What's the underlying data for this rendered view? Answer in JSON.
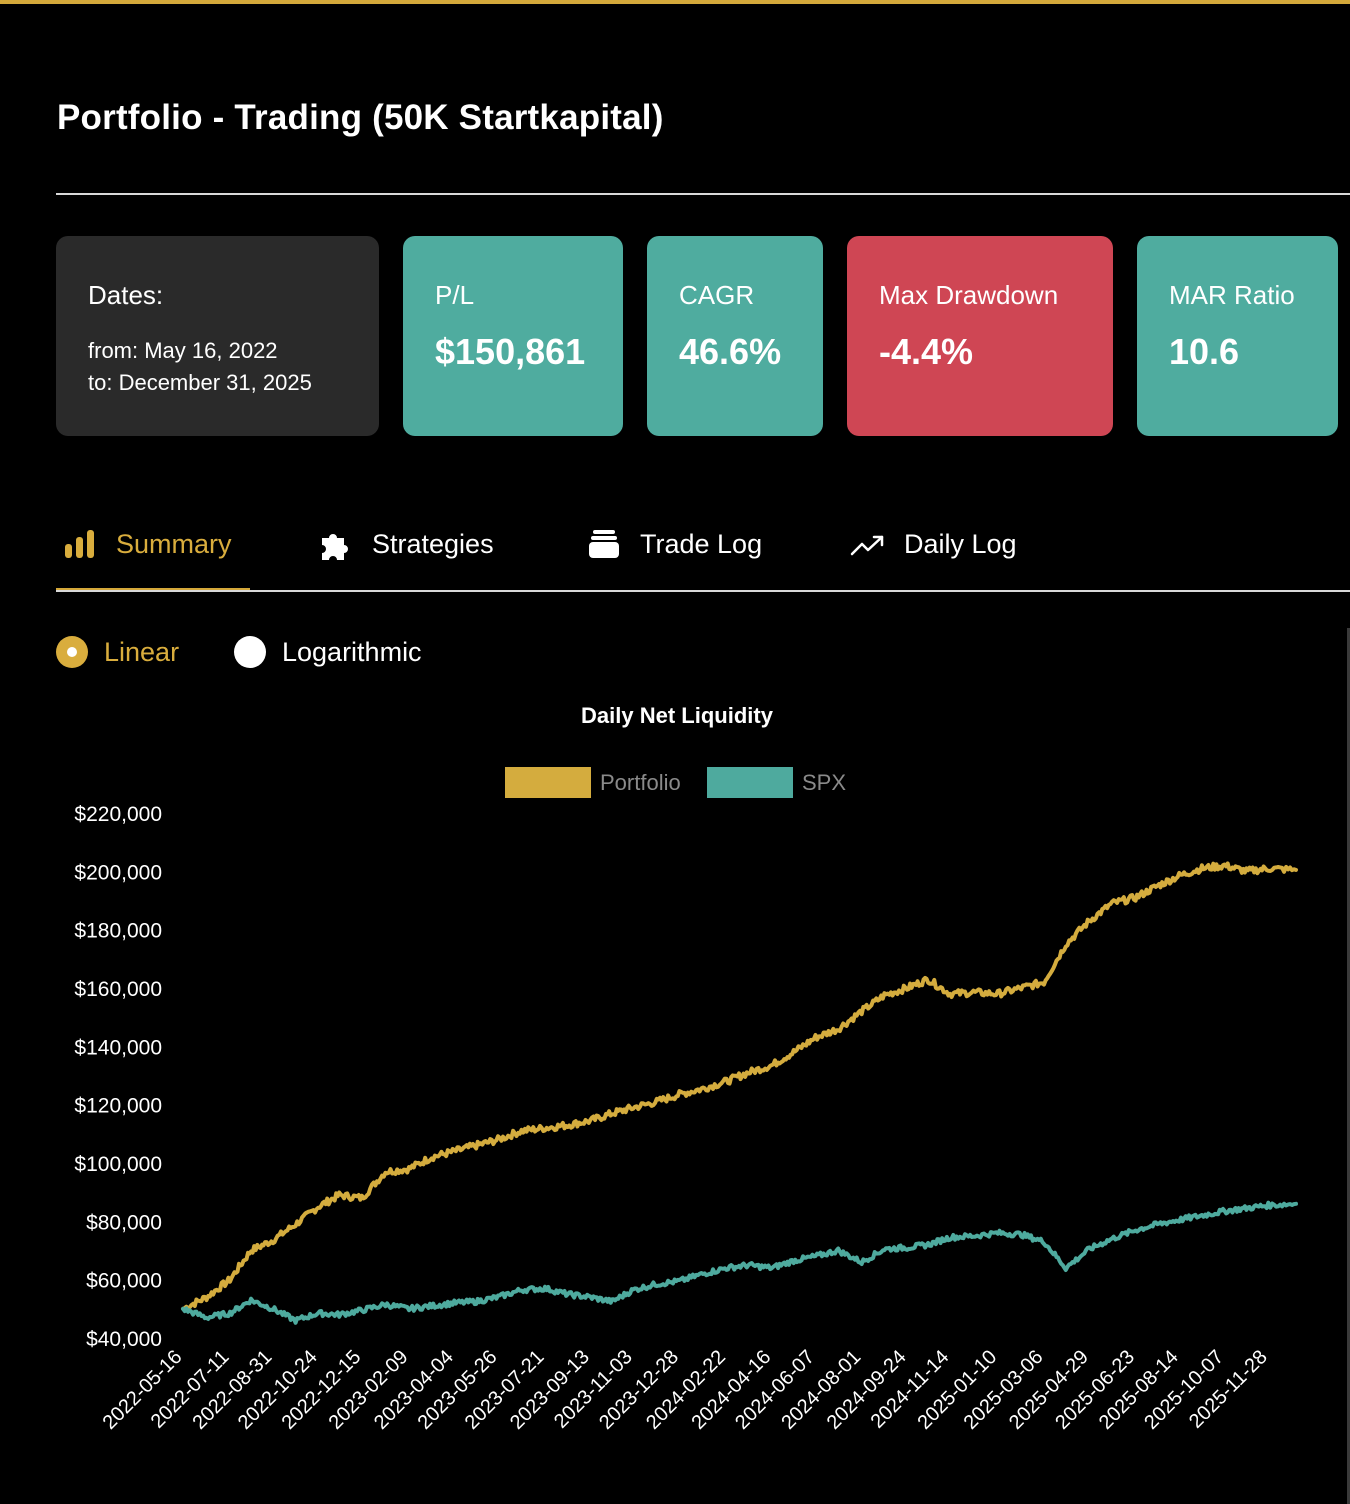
{
  "page": {
    "title": "Portfolio - Trading (50K Startkapital)"
  },
  "dates_card": {
    "label": "Dates:",
    "from": "from: May 16, 2022",
    "to": "to: December 31, 2025"
  },
  "metrics": [
    {
      "label": "P/L",
      "value": "$150,861",
      "color": "#4fac9f"
    },
    {
      "label": "CAGR",
      "value": "46.6%",
      "color": "#4fac9f"
    },
    {
      "label": "Max Drawdown",
      "value": "-4.4%",
      "color": "#cf4654"
    },
    {
      "label": "MAR Ratio",
      "value": "10.6",
      "color": "#4fac9f"
    }
  ],
  "tabs": [
    {
      "label": "Summary",
      "icon": "bar-chart-icon",
      "active": true
    },
    {
      "label": "Strategies",
      "icon": "puzzle-icon",
      "active": false
    },
    {
      "label": "Trade Log",
      "icon": "archive-box-icon",
      "active": false
    },
    {
      "label": "Daily Log",
      "icon": "trend-up-icon",
      "active": false
    }
  ],
  "scale_options": [
    {
      "label": "Linear",
      "selected": true
    },
    {
      "label": "Logarithmic",
      "selected": false
    }
  ],
  "colors": {
    "accent": "#d4a83a",
    "teal": "#4fac9f",
    "red": "#cf4654"
  },
  "chart_data": {
    "type": "line",
    "title": "Daily Net Liquidity",
    "xlabel": "",
    "ylabel": "",
    "ylim": [
      40000,
      220000
    ],
    "y_ticks": [
      "$220,000",
      "$200,000",
      "$180,000",
      "$160,000",
      "$140,000",
      "$120,000",
      "$100,000",
      "$80,000",
      "$60,000",
      "$40,000"
    ],
    "legend_position": "top-center",
    "x_tick_labels": [
      "2022-05-16",
      "2022-07-11",
      "2022-08-31",
      "2022-10-24",
      "2022-12-15",
      "2023-02-09",
      "2023-04-04",
      "2023-05-26",
      "2023-07-21",
      "2023-09-13",
      "2023-11-03",
      "2023-12-28",
      "2024-02-22",
      "2024-04-16",
      "2024-06-07",
      "2024-08-01",
      "2024-09-24",
      "2024-11-14",
      "2025-01-10",
      "2025-03-06",
      "2025-04-29",
      "2025-06-23",
      "2025-08-14",
      "2025-10-07",
      "2025-11-28"
    ],
    "x": [
      "2022-05-16",
      "2022-06-13",
      "2022-07-11",
      "2022-08-05",
      "2022-08-31",
      "2022-09-27",
      "2022-10-24",
      "2022-11-18",
      "2022-12-15",
      "2023-01-12",
      "2023-02-09",
      "2023-03-08",
      "2023-04-04",
      "2023-04-30",
      "2023-05-26",
      "2023-06-23",
      "2023-07-21",
      "2023-08-17",
      "2023-09-13",
      "2023-10-09",
      "2023-11-03",
      "2023-12-01",
      "2023-12-28",
      "2024-01-25",
      "2024-02-22",
      "2024-03-19",
      "2024-04-16",
      "2024-05-12",
      "2024-06-07",
      "2024-07-04",
      "2024-08-01",
      "2024-08-28",
      "2024-09-24",
      "2024-10-19",
      "2024-11-14",
      "2024-12-12",
      "2025-01-10",
      "2025-02-07",
      "2025-03-06",
      "2025-04-01",
      "2025-04-29",
      "2025-05-26",
      "2025-06-23",
      "2025-07-19",
      "2025-08-14",
      "2025-09-10",
      "2025-10-07",
      "2025-11-02",
      "2025-11-28",
      "2025-12-31"
    ],
    "series": [
      {
        "name": "Portfolio",
        "color": "#d4ac3e",
        "values": [
          50000,
          54000,
          60000,
          70000,
          73500,
          79000,
          85000,
          89000,
          88000,
          97000,
          98000,
          102000,
          104000,
          106000,
          108000,
          111000,
          112000,
          113000,
          114500,
          117000,
          119000,
          121000,
          123500,
          125500,
          128000,
          131000,
          133500,
          138000,
          143000,
          146000,
          152000,
          157500,
          160000,
          163000,
          158000,
          158500,
          158000,
          160000,
          162000,
          175000,
          183000,
          189000,
          191000,
          195000,
          198500,
          201000,
          202000,
          200000,
          201000,
          200500
        ]
      },
      {
        "name": "SPX",
        "color": "#4eaa9e",
        "values": [
          50000,
          47000,
          48500,
          53000,
          50000,
          46000,
          48500,
          48000,
          49500,
          51500,
          50000,
          51000,
          52000,
          52500,
          54000,
          56500,
          57000,
          55000,
          54000,
          52500,
          56500,
          58500,
          59500,
          62000,
          64000,
          65000,
          64000,
          66500,
          68000,
          70000,
          66000,
          70500,
          71000,
          72000,
          74500,
          75000,
          76000,
          75500,
          73000,
          64000,
          70500,
          74000,
          77000,
          79000,
          80500,
          82000,
          83500,
          84500,
          85500,
          86000
        ]
      }
    ]
  }
}
